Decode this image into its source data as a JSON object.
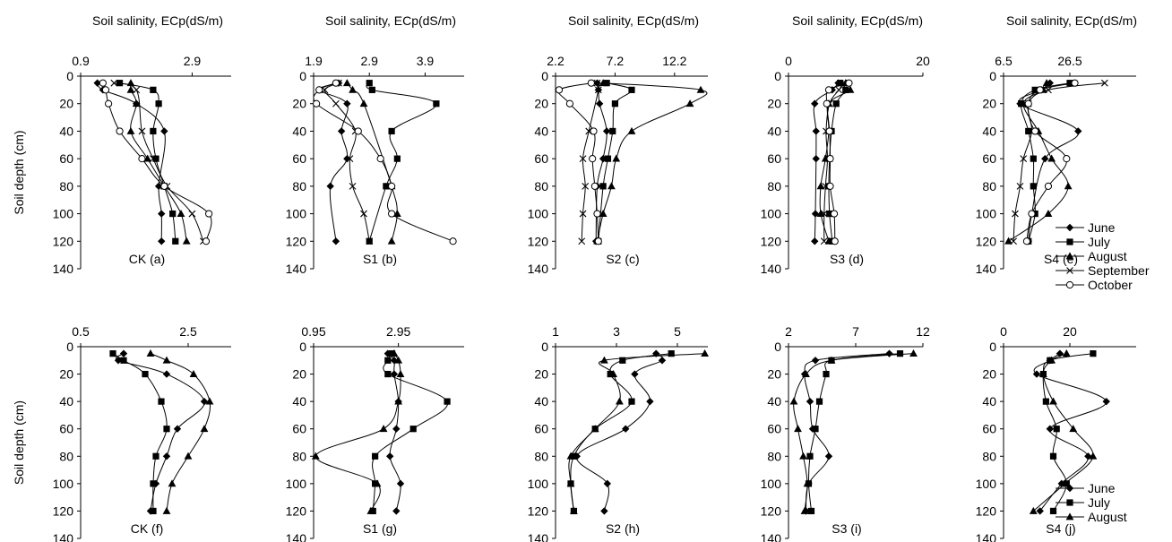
{
  "figure": {
    "xlabel": "Soil salinity, ECp(dS/m)",
    "ylabel": "Soil depth (cm)",
    "depth_ticks": [
      0,
      20,
      40,
      60,
      80,
      100,
      120,
      140
    ]
  },
  "chart_data": [
    {
      "type": "line",
      "label": "CK (a)",
      "xlabel": "Soil salinity, ECp(dS/m)",
      "ylabel": "Soil depth (cm)",
      "xlim": [
        0.9,
        3.6
      ],
      "xticks": [
        0.9,
        2.9
      ],
      "ylim": [
        0,
        140
      ],
      "y_reversed": true,
      "series": [
        {
          "name": "June",
          "x": [
            1.2,
            1.3,
            1.9,
            2.4,
            2.3,
            2.35,
            2.35
          ],
          "y": [
            5,
            10,
            20,
            40,
            80,
            100,
            120
          ]
        },
        {
          "name": "July",
          "x": [
            1.6,
            2.2,
            2.3,
            2.2,
            2.25,
            2.4,
            2.55,
            2.6
          ],
          "y": [
            5,
            10,
            20,
            40,
            60,
            80,
            100,
            120
          ]
        },
        {
          "name": "August",
          "x": [
            1.8,
            1.8,
            1.9,
            1.8,
            2.1,
            2.4,
            2.7,
            2.8
          ],
          "y": [
            5,
            10,
            20,
            40,
            60,
            80,
            100,
            120
          ]
        },
        {
          "name": "September",
          "x": [
            1.5,
            1.9,
            2.0,
            2.2,
            2.45,
            2.9,
            3.1
          ],
          "y": [
            5,
            10,
            40,
            60,
            80,
            100,
            120
          ]
        },
        {
          "name": "October",
          "x": [
            1.3,
            1.35,
            1.4,
            1.6,
            2.0,
            2.4,
            3.2,
            3.15
          ],
          "y": [
            5,
            10,
            20,
            40,
            60,
            80,
            100,
            120
          ]
        }
      ]
    },
    {
      "type": "line",
      "label": "S1 (b)",
      "xlabel": "Soil salinity, ECp(dS/m)",
      "ylabel": "Soil depth (cm)",
      "xlim": [
        1.9,
        4.6
      ],
      "xticks": [
        1.9,
        2.9,
        3.9
      ],
      "ylim": [
        0,
        140
      ],
      "y_reversed": true,
      "series": [
        {
          "name": "June",
          "x": [
            2.35,
            2.0,
            2.5,
            2.4,
            2.5,
            2.2,
            2.3
          ],
          "y": [
            5,
            10,
            20,
            40,
            60,
            80,
            120
          ]
        },
        {
          "name": "July",
          "x": [
            2.9,
            2.95,
            4.1,
            3.3,
            3.4,
            3.2,
            2.9
          ],
          "y": [
            5,
            10,
            20,
            40,
            60,
            80,
            120
          ]
        },
        {
          "name": "August",
          "x": [
            2.5,
            2.6,
            2.8,
            3.3,
            3.4,
            3.3
          ],
          "y": [
            5,
            10,
            20,
            80,
            100,
            120
          ]
        },
        {
          "name": "September",
          "x": [
            2.35,
            2.1,
            2.3,
            2.65,
            2.55,
            2.6,
            2.8,
            2.9
          ],
          "y": [
            5,
            10,
            20,
            40,
            60,
            80,
            100,
            120
          ]
        },
        {
          "name": "October",
          "x": [
            2.3,
            2.0,
            1.95,
            2.7,
            3.1,
            3.3,
            3.3,
            4.4
          ],
          "y": [
            5,
            10,
            20,
            40,
            60,
            80,
            100,
            120
          ]
        }
      ]
    },
    {
      "type": "line",
      "label": "S2 (c)",
      "xlabel": "Soil salinity, ECp(dS/m)",
      "ylabel": "Soil depth (cm)",
      "xlim": [
        2.2,
        15.0
      ],
      "xticks": [
        2.2,
        7.2,
        12.2
      ],
      "ylim": [
        0,
        140
      ],
      "y_reversed": true,
      "series": [
        {
          "name": "June",
          "x": [
            5.7,
            5.8,
            5.9,
            6.5,
            6.2,
            5.7,
            5.6
          ],
          "y": [
            5,
            10,
            20,
            40,
            60,
            80,
            120
          ]
        },
        {
          "name": "July",
          "x": [
            6.5,
            8.6,
            7.2,
            7.0,
            6.6,
            6.2,
            5.8
          ],
          "y": [
            5,
            10,
            20,
            40,
            60,
            80,
            120
          ]
        },
        {
          "name": "August",
          "x": [
            6.2,
            14.4,
            13.5,
            8.6,
            7.3,
            6.9,
            6.2,
            5.7
          ],
          "y": [
            5,
            10,
            20,
            40,
            60,
            80,
            100,
            120
          ]
        },
        {
          "name": "September",
          "x": [
            5.7,
            5.8,
            5.0,
            4.5,
            4.7,
            4.5,
            4.4
          ],
          "y": [
            5,
            10,
            40,
            60,
            80,
            100,
            120
          ]
        },
        {
          "name": "October",
          "x": [
            5.2,
            2.5,
            3.4,
            5.4,
            5.3,
            5.5,
            5.7,
            5.8
          ],
          "y": [
            5,
            10,
            20,
            40,
            60,
            80,
            100,
            120
          ]
        }
      ]
    },
    {
      "type": "line",
      "label": "S3 (d)",
      "xlabel": "Soil salinity, ECp(dS/m)",
      "ylabel": "Soil depth (cm)",
      "xlim": [
        0,
        20
      ],
      "xticks": [
        0,
        20
      ],
      "ylim": [
        0,
        140
      ],
      "y_reversed": true,
      "series": [
        {
          "name": "June",
          "x": [
            7.4,
            6.5,
            3.9,
            4.1,
            4.1,
            4.0,
            3.9
          ],
          "y": [
            5,
            10,
            20,
            40,
            60,
            100,
            120
          ]
        },
        {
          "name": "July",
          "x": [
            7.7,
            8.5,
            7.1,
            6.4,
            6.1,
            6.0,
            6.1,
            6.5
          ],
          "y": [
            5,
            10,
            20,
            40,
            60,
            80,
            100,
            120
          ]
        },
        {
          "name": "August",
          "x": [
            8.5,
            9.2,
            6.0,
            6.0,
            5.5,
            4.8,
            4.8,
            6.0
          ],
          "y": [
            5,
            10,
            20,
            40,
            60,
            80,
            100,
            120
          ]
        },
        {
          "name": "September",
          "x": [
            8.2,
            7.5,
            6.1,
            5.6,
            5.8,
            5.5,
            5.3,
            5.3
          ],
          "y": [
            5,
            10,
            20,
            40,
            60,
            80,
            100,
            120
          ]
        },
        {
          "name": "October",
          "x": [
            9.0,
            6.0,
            5.7,
            6.1,
            6.2,
            6.2,
            6.8,
            6.9
          ],
          "y": [
            5,
            10,
            20,
            40,
            60,
            80,
            100,
            120
          ]
        }
      ]
    },
    {
      "type": "line",
      "label": "S4 (e)",
      "xlabel": "Soil salinity, ECp(dS/m)",
      "ylabel": "Soil depth (cm)",
      "xlim": [
        6.5,
        46.5
      ],
      "xticks": [
        6.5,
        26.5
      ],
      "ylim": [
        0,
        140
      ],
      "y_reversed": true,
      "series": [
        {
          "name": "June",
          "x": [
            20.5,
            18.0,
            11.5,
            29.0,
            19.0,
            15.0,
            14.0
          ],
          "y": [
            5,
            10,
            20,
            40,
            60,
            100,
            120
          ]
        },
        {
          "name": "July",
          "x": [
            26.5,
            16.0,
            11.8,
            14.0,
            15.5,
            15.5,
            16.0,
            14.0
          ],
          "y": [
            5,
            10,
            20,
            40,
            60,
            80,
            100,
            120
          ]
        },
        {
          "name": "August",
          "x": [
            19.5,
            18.5,
            12.5,
            17.0,
            21.0,
            26.0,
            20.0,
            8.0
          ],
          "y": [
            5,
            10,
            20,
            40,
            60,
            80,
            100,
            120
          ]
        },
        {
          "name": "September",
          "x": [
            37.0,
            20.0,
            14.0,
            15.0,
            12.5,
            11.5,
            10.0,
            9.5
          ],
          "y": [
            5,
            10,
            20,
            40,
            60,
            80,
            100,
            120
          ]
        },
        {
          "name": "October",
          "x": [
            28.0,
            17.5,
            14.0,
            16.0,
            25.5,
            20.0,
            15.0,
            13.5
          ],
          "y": [
            5,
            10,
            20,
            40,
            60,
            80,
            100,
            120
          ]
        }
      ],
      "legend": [
        "June",
        "July",
        "August",
        "September",
        "October"
      ],
      "legend_position": "right"
    },
    {
      "type": "line",
      "label": "CK (f)",
      "xlabel": "",
      "ylabel": "Soil depth (cm)",
      "xlim": [
        0.5,
        3.3
      ],
      "xticks": [
        0.5,
        2.5
      ],
      "ylim": [
        0,
        140
      ],
      "y_reversed": true,
      "series": [
        {
          "name": "June",
          "x": [
            1.3,
            1.2,
            2.1,
            2.8,
            2.3,
            2.1,
            1.9,
            1.8
          ],
          "y": [
            5,
            10,
            20,
            40,
            60,
            80,
            100,
            120
          ]
        },
        {
          "name": "July",
          "x": [
            1.1,
            1.3,
            1.7,
            2.0,
            2.1,
            1.9,
            1.85,
            1.85
          ],
          "y": [
            5,
            10,
            20,
            40,
            60,
            80,
            100,
            120
          ]
        },
        {
          "name": "August",
          "x": [
            1.8,
            2.1,
            2.6,
            2.9,
            2.8,
            2.5,
            2.2,
            2.1
          ],
          "y": [
            5,
            10,
            20,
            40,
            60,
            80,
            100,
            120
          ]
        }
      ]
    },
    {
      "type": "line",
      "label": "S1 (g)",
      "xlabel": "",
      "ylabel": "Soil depth (cm)",
      "xlim": [
        0.95,
        4.5
      ],
      "xticks": [
        0.95,
        2.95
      ],
      "ylim": [
        0,
        140
      ],
      "y_reversed": true,
      "series": [
        {
          "name": "June",
          "x": [
            2.7,
            2.85,
            2.85,
            2.95,
            2.9,
            2.75,
            3.0,
            2.9
          ],
          "y": [
            5,
            10,
            20,
            40,
            60,
            80,
            100,
            120
          ]
        },
        {
          "name": "July",
          "x": [
            2.8,
            2.7,
            2.7,
            4.1,
            3.3,
            2.4,
            2.4,
            2.35
          ],
          "y": [
            5,
            10,
            20,
            40,
            60,
            80,
            100,
            120
          ]
        },
        {
          "name": "August",
          "x": [
            2.85,
            2.95,
            3.0,
            2.95,
            2.6,
            1.0,
            2.45,
            2.3
          ],
          "y": [
            5,
            10,
            20,
            40,
            60,
            80,
            100,
            120
          ]
        }
      ]
    },
    {
      "type": "line",
      "label": "S2 (h)",
      "xlabel": "",
      "ylabel": "Soil depth (cm)",
      "xlim": [
        1,
        6
      ],
      "xticks": [
        1,
        3,
        5
      ],
      "ylim": [
        0,
        140
      ],
      "y_reversed": true,
      "series": [
        {
          "name": "June",
          "x": [
            4.3,
            4.5,
            3.6,
            4.1,
            3.3,
            1.7,
            2.7,
            2.6
          ],
          "y": [
            5,
            10,
            20,
            40,
            60,
            80,
            100,
            120
          ]
        },
        {
          "name": "July",
          "x": [
            4.8,
            3.2,
            2.8,
            3.5,
            2.3,
            1.6,
            1.5,
            1.6
          ],
          "y": [
            5,
            10,
            20,
            40,
            60,
            80,
            100,
            120
          ]
        },
        {
          "name": "August",
          "x": [
            5.9,
            2.6,
            2.9,
            3.1,
            2.3,
            1.5,
            1.5,
            1.6
          ],
          "y": [
            5,
            10,
            20,
            40,
            60,
            80,
            100,
            120
          ]
        }
      ]
    },
    {
      "type": "line",
      "label": "S3 (i)",
      "xlabel": "",
      "ylabel": "Soil depth (cm)",
      "xlim": [
        2,
        12
      ],
      "xticks": [
        2,
        7,
        12
      ],
      "ylim": [
        0,
        140
      ],
      "y_reversed": true,
      "series": [
        {
          "name": "June",
          "x": [
            9.5,
            4.0,
            3.2,
            3.6,
            3.8,
            5.0,
            3.5,
            3.3
          ],
          "y": [
            5,
            10,
            20,
            40,
            60,
            80,
            100,
            120
          ]
        },
        {
          "name": "July",
          "x": [
            10.3,
            5.2,
            4.8,
            4.3,
            4.0,
            3.6,
            3.5,
            3.7
          ],
          "y": [
            5,
            10,
            20,
            40,
            60,
            80,
            100,
            120
          ]
        },
        {
          "name": "August",
          "x": [
            11.3,
            5.2,
            3.3,
            2.4,
            2.7,
            3.1,
            3.4,
            3.2
          ],
          "y": [
            5,
            10,
            20,
            40,
            60,
            80,
            100,
            120
          ]
        }
      ]
    },
    {
      "type": "line",
      "label": "S4 (j)",
      "xlabel": "",
      "ylabel": "Soil depth (cm)",
      "xlim": [
        0,
        40
      ],
      "xticks": [
        0,
        20
      ],
      "ylim": [
        0,
        140
      ],
      "y_reversed": true,
      "series": [
        {
          "name": "June",
          "x": [
            17.0,
            14.0,
            10.0,
            31.0,
            14.0,
            25.5,
            17.5,
            11.0
          ],
          "y": [
            5,
            10,
            20,
            40,
            60,
            80,
            100,
            120
          ]
        },
        {
          "name": "July",
          "x": [
            27.0,
            14.0,
            12.0,
            12.8,
            16.0,
            15.0,
            19.0,
            15.0
          ],
          "y": [
            5,
            10,
            20,
            40,
            60,
            80,
            100,
            120
          ]
        },
        {
          "name": "August",
          "x": [
            19.0,
            14.5,
            12.0,
            15.0,
            21.0,
            27.0,
            18.5,
            9.0
          ],
          "y": [
            5,
            10,
            20,
            40,
            60,
            80,
            100,
            120
          ]
        }
      ],
      "legend": [
        "June",
        "July",
        "August"
      ],
      "legend_position": "right"
    }
  ]
}
